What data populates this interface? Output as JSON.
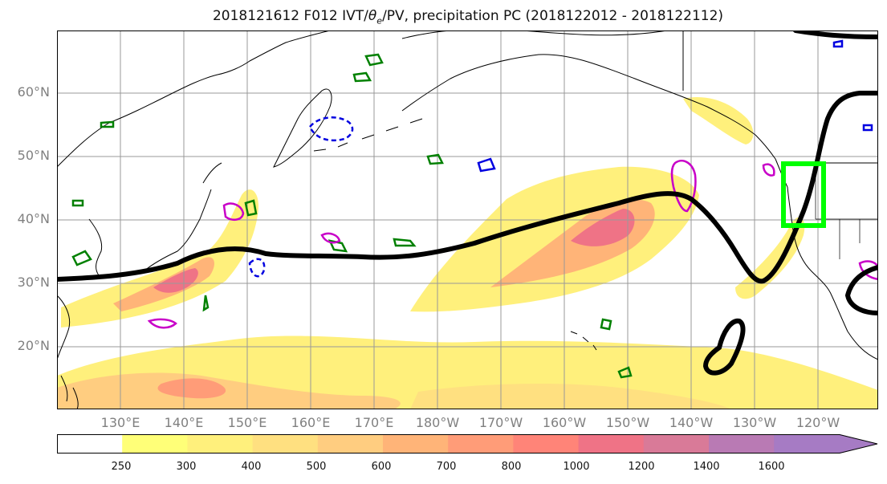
{
  "figure": {
    "title_prefix": "2018121612 F012 IVT/",
    "title_theta": "θ",
    "title_sub": "e",
    "title_suffix": "/PV, precipitation PC (2018122012 - 2018122112)"
  },
  "map": {
    "lat_labels": [
      "60°N",
      "50°N",
      "40°N",
      "30°N",
      "20°N"
    ],
    "lon_labels": [
      "130°E",
      "140°E",
      "150°E",
      "160°E",
      "170°E",
      "180°W",
      "170°W",
      "160°W",
      "150°W",
      "140°W",
      "130°W",
      "120°W"
    ],
    "colors": {
      "land_border": "#000000",
      "grid": "#999999",
      "theta_e_line": "#000000",
      "pv_contour": "#c800c8",
      "green_contour": "#008000",
      "blue_contour": "#0000e0",
      "target_box": "#00ff00"
    }
  },
  "colorbar": {
    "tick_labels": [
      "250",
      "300",
      "400",
      "500",
      "600",
      "700",
      "800",
      "1000",
      "1200",
      "1400",
      "1600"
    ],
    "colors": [
      "#ffffff",
      "#ffff78",
      "#fff07c",
      "#ffe080",
      "#ffcd80",
      "#ffb478",
      "#ff9c78",
      "#ff8478",
      "#ef7386",
      "#d97a98",
      "#b97ab4",
      "#a67bc4"
    ]
  }
}
